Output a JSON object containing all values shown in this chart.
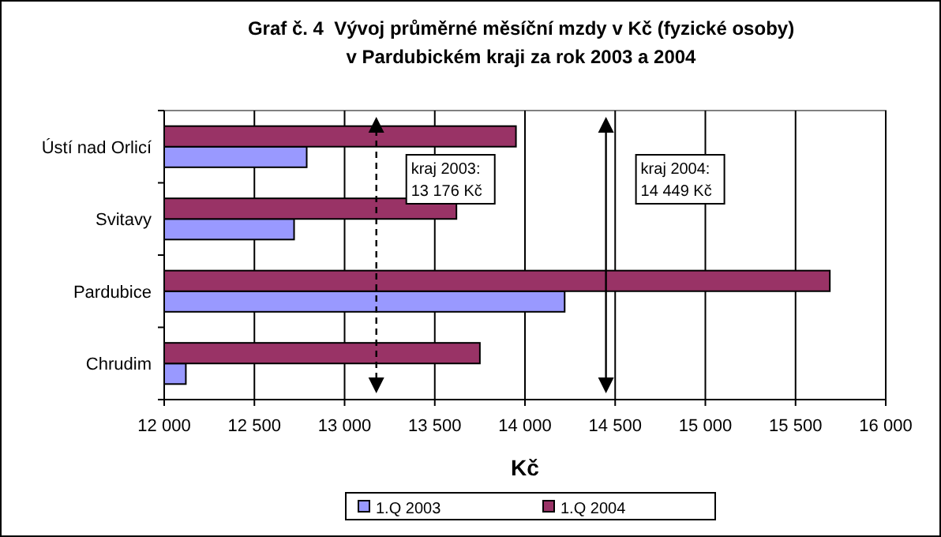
{
  "chart_data": {
    "type": "bar",
    "orientation": "horizontal",
    "title": "Graf č. 4  Vývoj průměrné měsíční mzdy v Kč (fyzické osoby)\nv Pardubickém kraji za rok 2003 a 2004",
    "xlabel": "Kč",
    "categories": [
      "Ústí nad Orlicí",
      "Svitavy",
      "Pardubice",
      "Chrudim"
    ],
    "series": [
      {
        "name": "1.Q 2003",
        "color": "#9999ff",
        "values": [
          12790,
          12720,
          14220,
          12120
        ]
      },
      {
        "name": "1.Q 2004",
        "color": "#993366",
        "values": [
          13950,
          13620,
          15690,
          13750
        ]
      }
    ],
    "xlim": [
      12000,
      16000
    ],
    "xticks": [
      {
        "value": 12000,
        "label": "12 000"
      },
      {
        "value": 12500,
        "label": "12 500"
      },
      {
        "value": 13000,
        "label": "13 000"
      },
      {
        "value": 13500,
        "label": "13 500"
      },
      {
        "value": 14000,
        "label": "14 000"
      },
      {
        "value": 14500,
        "label": "14 500"
      },
      {
        "value": 15000,
        "label": "15 000"
      },
      {
        "value": 15500,
        "label": "15 500"
      },
      {
        "value": 16000,
        "label": "16 000"
      }
    ],
    "grid": "x",
    "legend": "bottom",
    "ref_lines": [
      {
        "axis": "x",
        "value": 13176,
        "label": "kraj 2003:\n13 176 Kč",
        "line_style": "dashed",
        "color": "#000000"
      },
      {
        "axis": "x",
        "value": 14449,
        "label": "kraj 2004:\n14 449 Kč",
        "line_style": "solid",
        "color": "#000000"
      }
    ]
  }
}
